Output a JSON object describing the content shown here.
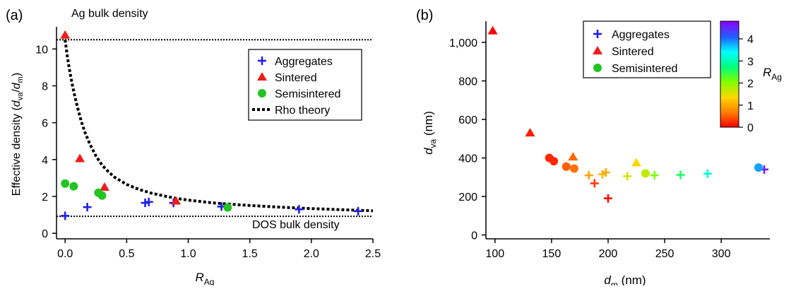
{
  "colors": {
    "aggregates": "#1f1fe6",
    "sintered": "#ee1c1c",
    "semisintered": "#22c322",
    "axis": "#000000"
  },
  "chart_data": [
    {
      "type": "scatter",
      "panel_label": "(a)",
      "x_ticks": [
        "0.0",
        "0.5",
        "1.0",
        "1.5",
        "2.0",
        "2.5"
      ],
      "y_ticks": [
        "0",
        "2",
        "4",
        "6",
        "8",
        "10"
      ],
      "xlim": [
        -0.07,
        2.5
      ],
      "ylim": [
        -0.3,
        11.2
      ],
      "xlabel_main": "R",
      "xlabel_sub": "Ag",
      "ylabel_pre": "Effective density (",
      "ylabel_n": "d",
      "ylabel_nsub": "va",
      "ylabel_slash": "/",
      "ylabel_d": "d",
      "ylabel_dsub": "m",
      "ylabel_post": ")",
      "lines": {
        "ag_bulk": {
          "y": 10.5,
          "label": "Ag bulk density"
        },
        "dos_bulk": {
          "y": 0.92,
          "label": "DOS bulk density"
        }
      },
      "legend": [
        "Aggregates",
        "Sintered",
        "Semisintered",
        "Rho theory"
      ],
      "series": [
        {
          "name": "Aggregates",
          "marker": "plus",
          "points": [
            [
              0.0,
              0.95
            ],
            [
              0.18,
              1.42
            ],
            [
              0.65,
              1.65
            ],
            [
              0.68,
              1.7
            ],
            [
              0.88,
              1.65
            ],
            [
              1.27,
              1.45
            ],
            [
              1.9,
              1.3
            ],
            [
              2.38,
              1.2
            ]
          ]
        },
        {
          "name": "Sintered",
          "marker": "triangle",
          "points": [
            [
              0.0,
              10.75
            ],
            [
              0.12,
              4.05
            ],
            [
              0.32,
              2.5
            ],
            [
              0.9,
              1.75
            ]
          ]
        },
        {
          "name": "Semisintered",
          "marker": "circle",
          "points": [
            [
              0.0,
              2.7
            ],
            [
              0.07,
              2.55
            ],
            [
              0.27,
              2.2
            ],
            [
              0.3,
              2.05
            ],
            [
              1.32,
              1.4
            ]
          ]
        },
        {
          "name": "Rho theory",
          "marker": "line",
          "points": [
            [
              0.0,
              10.5
            ],
            [
              0.02,
              9.5
            ],
            [
              0.04,
              8.7
            ],
            [
              0.06,
              8.0
            ],
            [
              0.08,
              7.4
            ],
            [
              0.1,
              6.85
            ],
            [
              0.13,
              6.1
            ],
            [
              0.16,
              5.5
            ],
            [
              0.2,
              4.85
            ],
            [
              0.25,
              4.2
            ],
            [
              0.3,
              3.7
            ],
            [
              0.35,
              3.35
            ],
            [
              0.4,
              3.05
            ],
            [
              0.5,
              2.65
            ],
            [
              0.6,
              2.38
            ],
            [
              0.7,
              2.18
            ],
            [
              0.8,
              2.03
            ],
            [
              0.9,
              1.9
            ],
            [
              1.0,
              1.8
            ],
            [
              1.2,
              1.65
            ],
            [
              1.4,
              1.55
            ],
            [
              1.6,
              1.47
            ],
            [
              1.8,
              1.4
            ],
            [
              2.0,
              1.34
            ],
            [
              2.2,
              1.29
            ],
            [
              2.5,
              1.22
            ]
          ]
        }
      ]
    },
    {
      "type": "scatter",
      "panel_label": "(b)",
      "x_ticks": [
        "100",
        "150",
        "200",
        "250",
        "300"
      ],
      "y_ticks": [
        "0",
        "200",
        "400",
        "600",
        "800",
        "1,000"
      ],
      "xlim": [
        92,
        343
      ],
      "ylim": [
        -20,
        1110
      ],
      "xlabel_main": "d",
      "xlabel_sub": "m",
      "xlabel_post": " (nm)",
      "ylabel_main": "d",
      "ylabel_sub": "va",
      "ylabel_post": " (nm)",
      "legend": [
        "Aggregates",
        "Sintered",
        "Semisintered"
      ],
      "colorbar": {
        "title_main": "R",
        "title_sub": "Ag",
        "ticks": [
          "0",
          "1",
          "2",
          "3",
          "4"
        ],
        "range": [
          0,
          4.8
        ]
      },
      "series": [
        {
          "name": "Aggregates",
          "marker": "plus",
          "points": [
            [
              183,
              310,
              0.95
            ],
            [
              188,
              268,
              0.3
            ],
            [
              195,
              315,
              1.1
            ],
            [
              198,
              325,
              1.0
            ],
            [
              200,
              190,
              0.05
            ],
            [
              217,
              305,
              1.6
            ],
            [
              241,
              310,
              2.1
            ],
            [
              264,
              312,
              2.6
            ],
            [
              288,
              318,
              3.2
            ],
            [
              338,
              340,
              4.6
            ]
          ]
        },
        {
          "name": "Sintered",
          "marker": "triangle",
          "points": [
            [
              98,
              1060,
              0.0
            ],
            [
              131,
              530,
              0.15
            ],
            [
              169,
              405,
              0.55
            ],
            [
              225,
              375,
              1.35
            ]
          ]
        },
        {
          "name": "Semisintered",
          "marker": "circle",
          "points": [
            [
              148,
              400,
              0.2
            ],
            [
              152,
              383,
              0.2
            ],
            [
              163,
              355,
              0.5
            ],
            [
              170,
              345,
              0.6
            ],
            [
              233,
              320,
              1.7
            ],
            [
              333,
              350,
              3.8
            ]
          ]
        }
      ]
    }
  ]
}
